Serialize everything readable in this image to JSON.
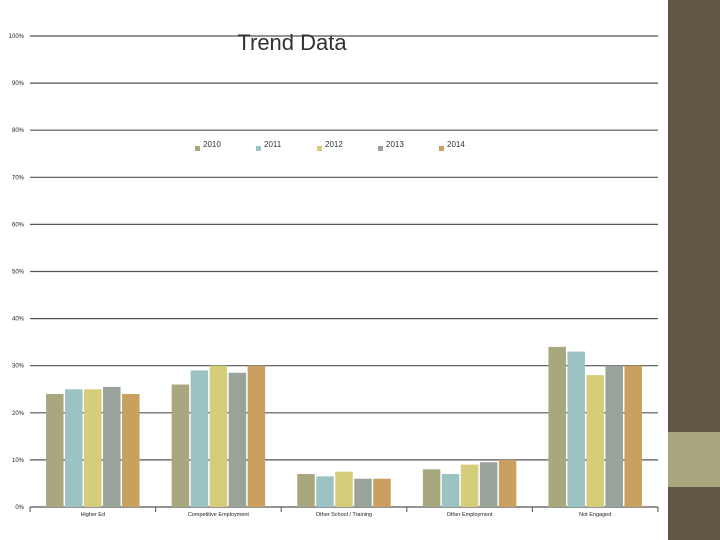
{
  "slide": {
    "colors": {
      "background": "#ffffff",
      "side_bar": "#605844",
      "side_accent": "#a8a67c"
    }
  },
  "chart_data": {
    "type": "bar",
    "title": "Trend Data",
    "categories": [
      "Higher Ed",
      "Competitive Employment",
      "Other School / Training",
      "Other Employment",
      "Not Engaged"
    ],
    "series": [
      {
        "name": "2010",
        "color": "#a9a77e",
        "values": [
          24,
          26,
          7,
          8,
          34
        ]
      },
      {
        "name": "2011",
        "color": "#9cc3c3",
        "values": [
          25,
          29,
          6.5,
          7,
          33
        ]
      },
      {
        "name": "2012",
        "color": "#d6cd7a",
        "values": [
          25,
          30,
          7.5,
          9,
          28
        ]
      },
      {
        "name": "2013",
        "color": "#9aa39a",
        "values": [
          25.5,
          28.5,
          6,
          9.5,
          30
        ]
      },
      {
        "name": "2014",
        "color": "#c9a060",
        "values": [
          24,
          30,
          6,
          10,
          30
        ]
      }
    ],
    "y_ticks": [
      "100%",
      "90%",
      "80%",
      "70%",
      "60%",
      "50%",
      "40%",
      "30%",
      "20%",
      "10%",
      "0%"
    ],
    "ylim": [
      0,
      100
    ],
    "grid": true,
    "legend_position": "top"
  }
}
